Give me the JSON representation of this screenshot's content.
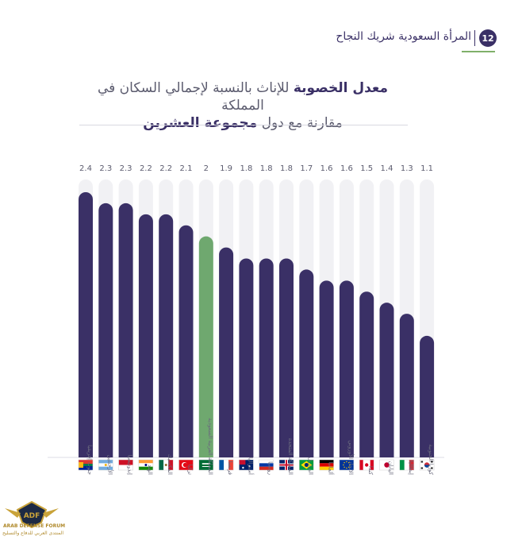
{
  "header": {
    "number": "12",
    "title": "المرأة السعودية شريك النجاح"
  },
  "chart_data": {
    "type": "bar",
    "title_line1_bold": "معدل الخصوبة",
    "title_line1_rest": " للإناث بالنسبة لإجمالي السكان في المملكة",
    "title_line2_rest": "مقارنة مع دول ",
    "title_line2_bold": "مجموعة العشرين",
    "ylim": [
      0,
      2.4
    ],
    "categories": [
      "جنوب إفريقيا",
      "الأرجنتين",
      "إندونيسيا",
      "الهند",
      "المكسيك",
      "تركيا",
      "المملكة العربية السعودية",
      "فرنسا",
      "أستراليا",
      "روسيا",
      "المملكة المتحدة",
      "البرازيل",
      "ألمانيا",
      "الاتحاد الأوروبي",
      "كندا",
      "اليابان",
      "إيطاليا",
      "كوريا الجنوبية"
    ],
    "values": [
      2.4,
      2.3,
      2.3,
      2.2,
      2.2,
      2.1,
      2.0,
      1.9,
      1.8,
      1.8,
      1.8,
      1.7,
      1.6,
      1.6,
      1.5,
      1.4,
      1.3,
      1.1
    ],
    "value_labels": [
      "2.4",
      "2.3",
      "2.3",
      "2.2",
      "2.2",
      "2.1",
      "2",
      "1.9",
      "1.8",
      "1.8",
      "1.8",
      "1.7",
      "1.6",
      "1.6",
      "1.5",
      "1.4",
      "1.3",
      "1.1"
    ],
    "highlight_index": 6,
    "flags": [
      "south-africa-flag",
      "argentina-flag",
      "indonesia-flag",
      "india-flag",
      "mexico-flag",
      "turkey-flag",
      "saudi-arabia-flag",
      "france-flag",
      "australia-flag",
      "russia-flag",
      "uk-flag",
      "brazil-flag",
      "germany-flag",
      "eu-flag",
      "canada-flag",
      "japan-flag",
      "italy-flag",
      "south-korea-flag"
    ],
    "colors": {
      "bar": "#3a3066",
      "highlight": "#6fa86f",
      "track": "#f1f1f4"
    }
  },
  "watermark": {
    "logo_text": "ADF",
    "line1": "ARAB DEFENSE FORUM",
    "line2": "المنتدى العربي للدفاع والتسليح"
  }
}
